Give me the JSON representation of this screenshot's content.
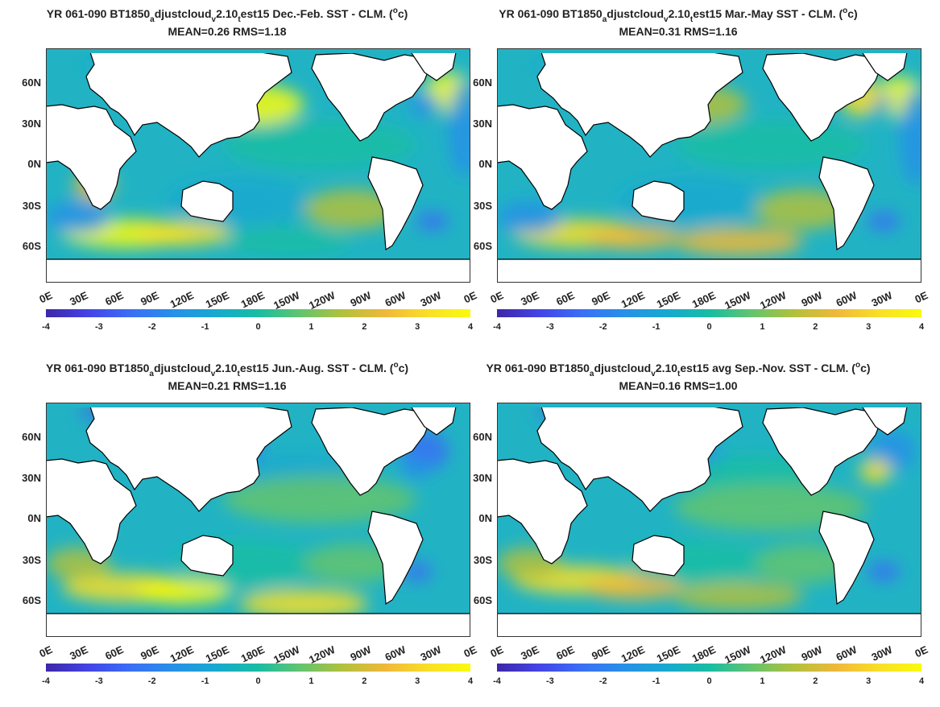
{
  "panels": [
    {
      "title_pre": "YR 061-090 BT1850",
      "sub1": "a",
      "mid": "djustcloud",
      "sub2": "v",
      "mid2": "2.10",
      "sub3": "t",
      "title_post": "est15  Dec.-Feb. SST - CLM. (",
      "sup": "o",
      "title_end": "c)",
      "stats": "MEAN=0.26   RMS=1.18",
      "season": "djf"
    },
    {
      "title_pre": "YR 061-090 BT1850",
      "sub1": "a",
      "mid": "djustcloud",
      "sub2": "v",
      "mid2": "2.10",
      "sub3": "t",
      "title_post": "est15 Mar.-May SST - CLM. (",
      "sup": "o",
      "title_end": "c)",
      "stats": "MEAN=0.31   RMS=1.16",
      "season": "mam"
    },
    {
      "title_pre": "YR 061-090 BT1850",
      "sub1": "a",
      "mid": "djustcloud",
      "sub2": "v",
      "mid2": "2.10",
      "sub3": "t",
      "title_post": "est15 Jun.-Aug. SST - CLM. (",
      "sup": "o",
      "title_end": "c)",
      "stats": "MEAN=0.21   RMS=1.16",
      "season": "jja"
    },
    {
      "title_pre": "YR 061-090 BT1850",
      "sub1": "a",
      "mid": "djustcloud",
      "sub2": "v",
      "mid2": "2.10",
      "sub3": "t",
      "title_post": "est15 avg Sep.-Nov. SST - CLM. (",
      "sup": "o",
      "title_end": "c)",
      "stats": "MEAN=0.16   RMS=1.00",
      "season": "son"
    }
  ],
  "lat_labels": [
    "60N",
    "30N",
    "0N",
    "30S",
    "60S"
  ],
  "lon_labels": [
    "0E",
    "30E",
    "60E",
    "90E",
    "120E",
    "150E",
    "180E",
    "150W",
    "120W",
    "90W",
    "60W",
    "30W",
    "0E"
  ],
  "colorbar": {
    "ticks": [
      "-4",
      "-3",
      "-2",
      "-1",
      "0",
      "1",
      "2",
      "3",
      "4"
    ],
    "colors": [
      "#3e26a8",
      "#4444e6",
      "#3a6ff5",
      "#2790e8",
      "#17a9cf",
      "#17bda3",
      "#63c46e",
      "#b2c13c",
      "#f0b83a",
      "#f9df27",
      "#f9fb0e"
    ]
  },
  "ocean_color": "#21b3c4",
  "land_color": "#ffffff"
}
